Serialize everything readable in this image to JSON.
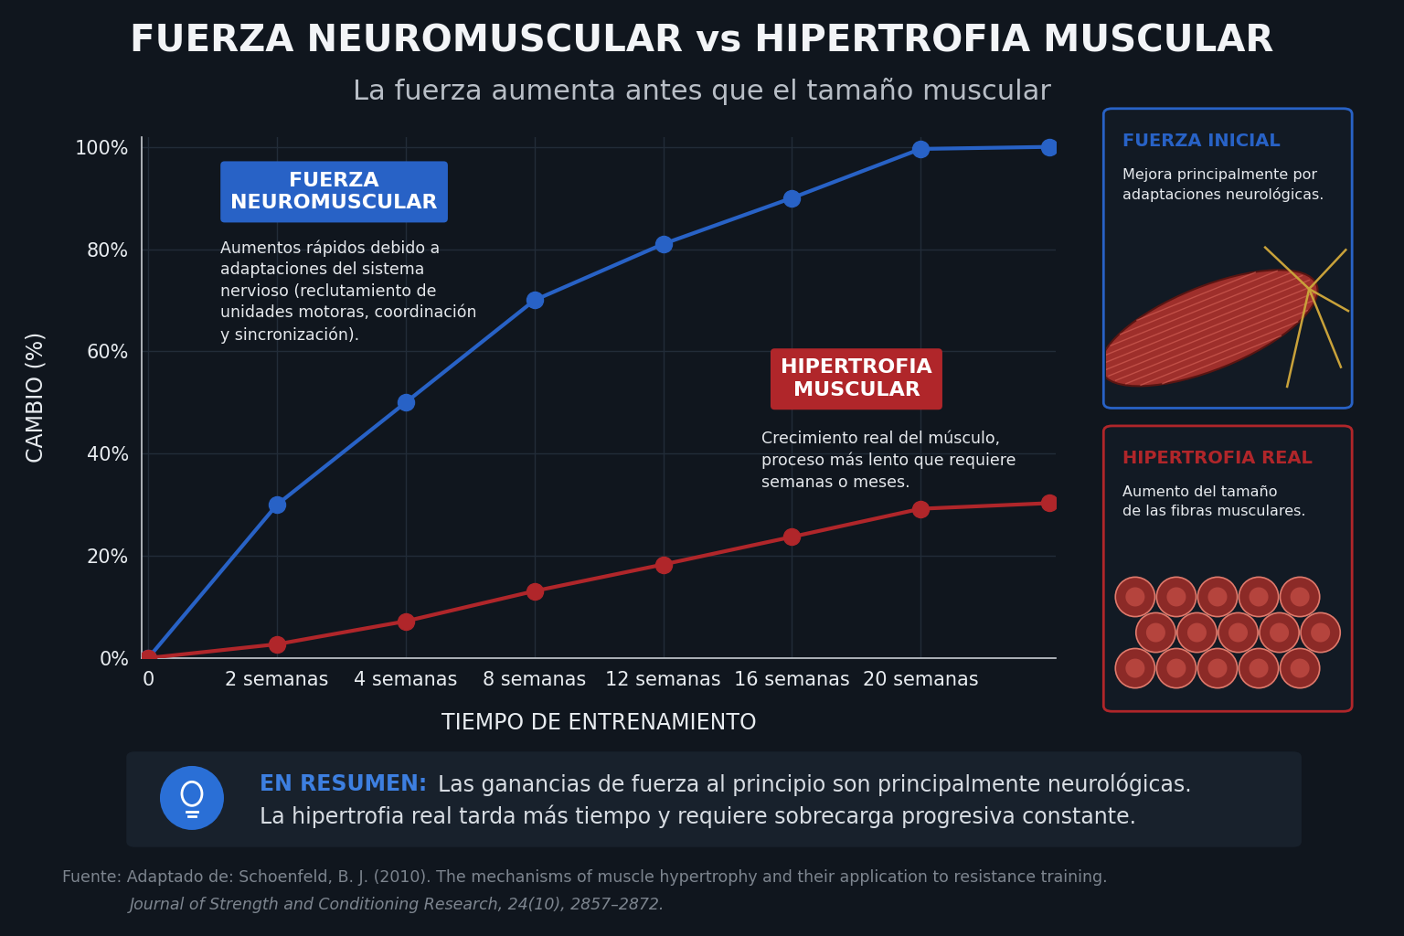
{
  "chart_data": {
    "type": "line",
    "title": "FUERZA NEUROMUSCULAR vs HIPERTROFIA MUSCULAR",
    "subtitle": "La fuerza aumenta antes que el tamaño muscular",
    "x_label": "TIEMPO DE ENTRENAMIENTO",
    "y_label": "CAMBIO (%)",
    "categories": [
      "0",
      "2 semanas",
      "4 semanas",
      "8 semanas",
      "12 semanas",
      "16 semanas",
      "20 semanas",
      null
    ],
    "series": [
      {
        "name": "FUERZA\nNEUROMUSCULAR",
        "color": "#2862c6",
        "marker": "circle",
        "line_style": "solid",
        "values": [
          0,
          30,
          50,
          70,
          81,
          90,
          99.6,
          100
        ]
      },
      {
        "name": "HIPERTROFIA\nMUSCULAR",
        "color": "#b0262a",
        "marker": "circle",
        "line_style": "solid",
        "values": [
          0,
          2.7,
          7.2,
          13.1,
          18.3,
          23.7,
          29.2,
          30.3
        ]
      }
    ],
    "annotations": [
      "Aumentos rápidos debido a\nadaptaciones del sistema\nnervioso (reclutamiento de\nunidades motoras, coordinación\ny sincronización).",
      "Crecimiento real del músculo,\nproceso más lento que requiere\nsemanas o meses."
    ],
    "ylim": [
      0,
      102
    ],
    "yticks": [
      {
        "value": 0,
        "label": "0%"
      },
      {
        "value": 20,
        "label": "20%"
      },
      {
        "value": 40,
        "label": "40%"
      },
      {
        "value": 60,
        "label": "60%"
      },
      {
        "value": 80,
        "label": "80%"
      },
      {
        "value": 100,
        "label": "100%"
      }
    ],
    "grid": true
  },
  "panels": [
    {
      "title": "FUERZA INICIAL",
      "text": "Mejora principalmente por\nadaptaciones neurológicas."
    },
    {
      "title": "HIPERTROFIA REAL",
      "text": "Aumento del tamaño\nde las fibras musculares."
    }
  ],
  "summary": {
    "heading": "EN RESUMEN:",
    "lines": [
      "Las ganancias de fuerza al principio son principalmente neurológicas.",
      "La hipertrofia real tarda más tiempo y requiere sobrecarga progresiva constante."
    ]
  },
  "source": [
    "Fuente: Adaptado de: Schoenfeld, B. J. (2010). The mechanisms of muscle hypertrophy and their application to resistance training.",
    "Journal of Strength and Conditioning Research, 24(10), 2857–2872."
  ]
}
